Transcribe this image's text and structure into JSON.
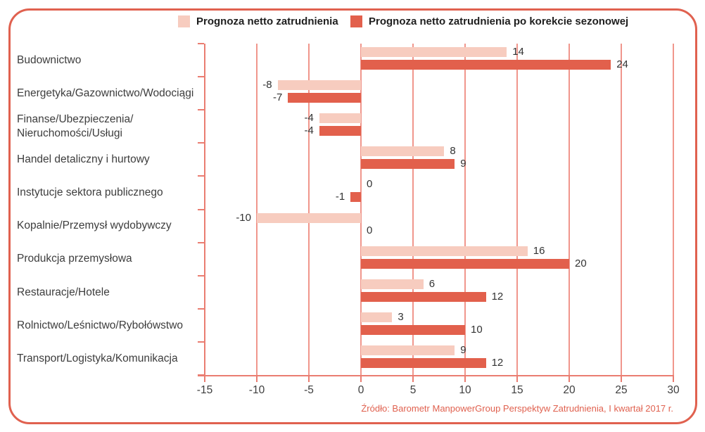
{
  "legend": {
    "series1_label": "Prognoza netto zatrudnienia",
    "series2_label": "Prognoza netto zatrudnienia po korekcie sezonowej"
  },
  "colors": {
    "border": "#e0614f",
    "grid": "#f0968c",
    "axis": "#ea7d71",
    "text": "#3d3d3d",
    "source_text": "#e0614f"
  },
  "chart_data": {
    "type": "bar",
    "orientation": "horizontal",
    "title": "",
    "xlabel": "",
    "ylabel": "",
    "xlim": [
      -15,
      30
    ],
    "xticks": [
      -15,
      -10,
      -5,
      0,
      5,
      10,
      15,
      20,
      25,
      30
    ],
    "grid": true,
    "legend_position": "top",
    "categories": [
      "Budownictwo",
      "Energetyka/Gazownictwo/Wodociągi",
      "Finanse/Ubezpieczenia/\nNieruchomości/Usługi",
      "Handel detaliczny i hurtowy",
      "Instytucje sektora publicznego",
      "Kopalnie/Przemysł wydobywczy",
      "Produkcja przemysłowa",
      "Restauracje/Hotele",
      "Rolnictwo/Leśnictwo/Rybołówstwo",
      "Transport/Logistyka/Komunikacja"
    ],
    "series": [
      {
        "name": "Prognoza netto zatrudnienia",
        "color": "#f7ccbf",
        "values": [
          14,
          -8,
          -4,
          8,
          0,
          -10,
          16,
          6,
          3,
          9
        ]
      },
      {
        "name": "Prognoza netto zatrudnienia po korekcie sezonowej",
        "color": "#e2604c",
        "values": [
          24,
          -7,
          -4,
          9,
          -1,
          0,
          20,
          12,
          10,
          12
        ]
      }
    ]
  },
  "source": "Źródło: Barometr ManpowerGroup Perspektyw Zatrudnienia, I kwartał 2017 r."
}
